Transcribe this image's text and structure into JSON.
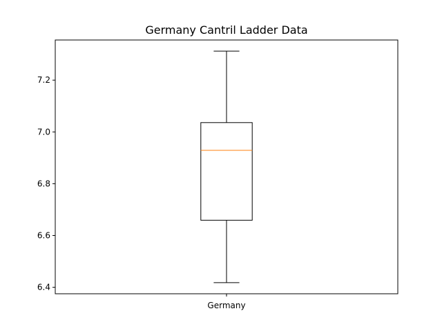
{
  "chart_data": {
    "type": "box",
    "title": "Germany Cantril Ladder Data",
    "xlabel": "",
    "ylabel": "",
    "categories": [
      "Germany"
    ],
    "series": [
      {
        "values": {
          "whisker_low": 6.418,
          "q1": 6.659,
          "median": 6.929,
          "q3": 7.036,
          "whisker_high": 7.312
        }
      }
    ],
    "ylim": [
      6.375,
      7.355
    ],
    "yticks": [
      6.4,
      6.6,
      6.8,
      7.0,
      7.2
    ],
    "ytick_labels": [
      "6.4",
      "6.6",
      "6.8",
      "7.0",
      "7.2"
    ],
    "grid": false,
    "colors": {
      "box": "#000000",
      "median": "#ff7f0e",
      "whisker": "#000000"
    }
  }
}
